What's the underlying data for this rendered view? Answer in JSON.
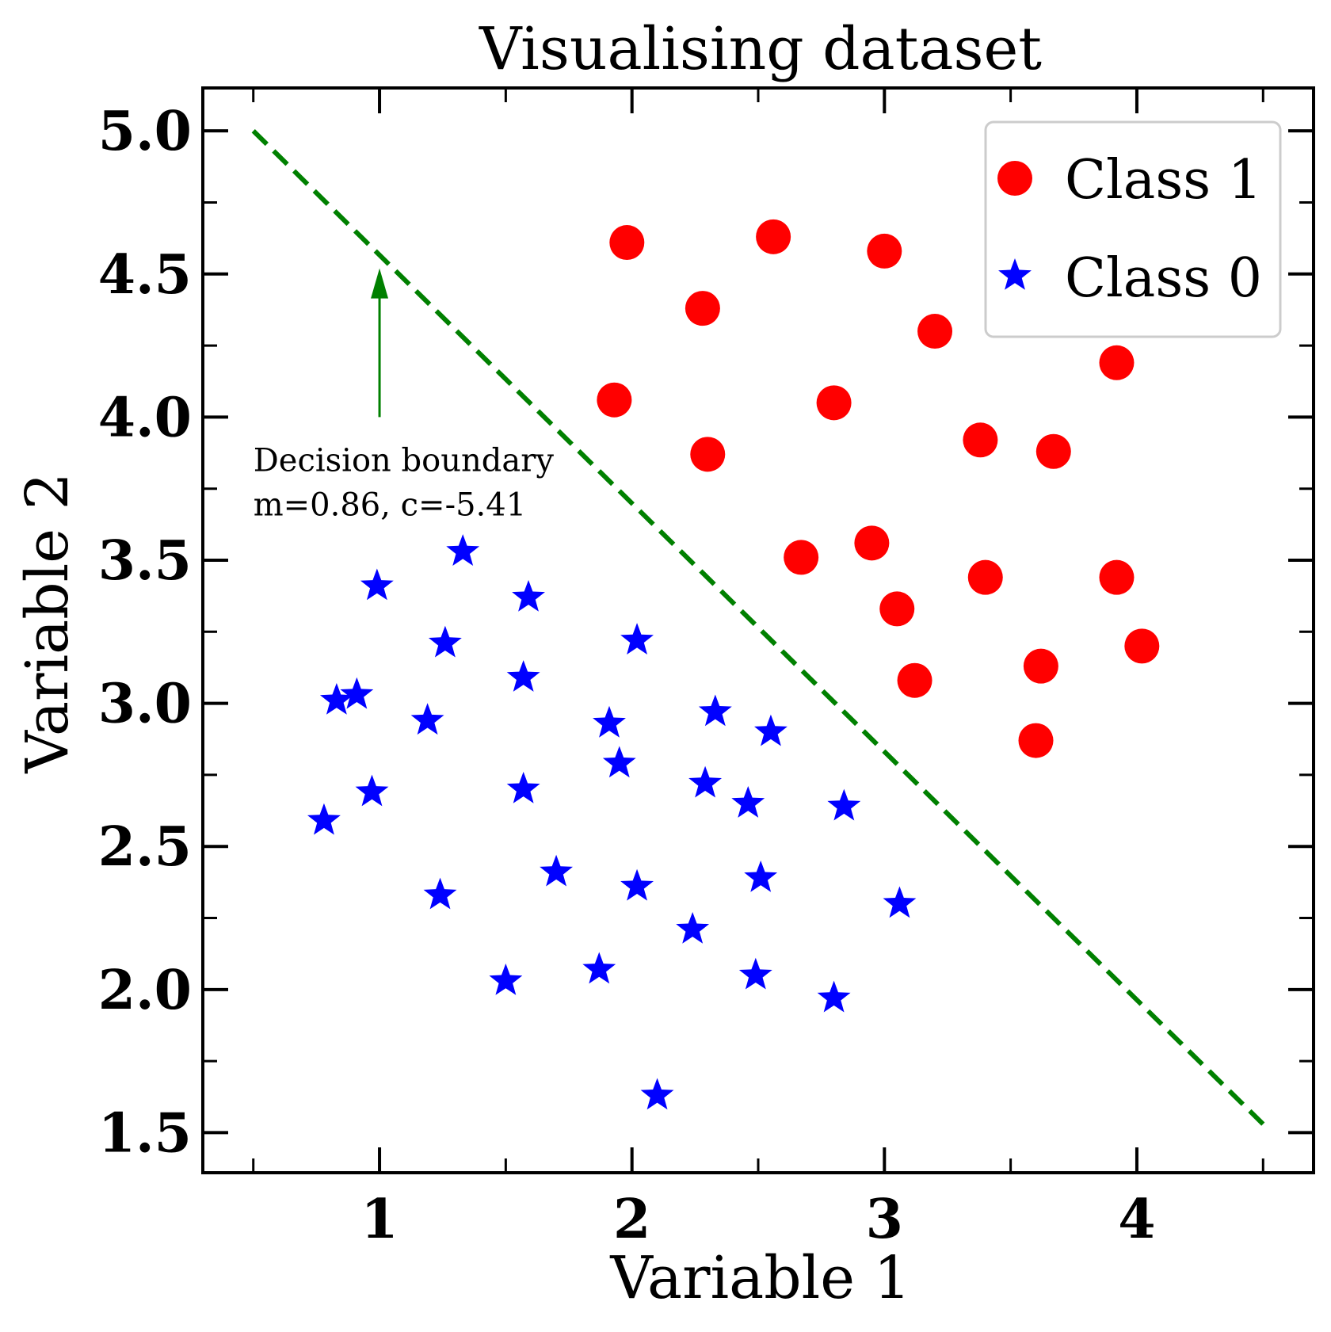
{
  "chart_data": {
    "type": "scatter",
    "title": "Visualising dataset",
    "xlabel": "Variable 1",
    "ylabel": "Variable 2",
    "xlim": [
      0.3,
      4.7
    ],
    "ylim": [
      1.36,
      5.15
    ],
    "x_ticks": [
      {
        "value": 1,
        "label": "1"
      },
      {
        "value": 2,
        "label": "2"
      },
      {
        "value": 3,
        "label": "3"
      },
      {
        "value": 4,
        "label": "4"
      }
    ],
    "x_minor_ticks": [
      0.5,
      1.5,
      2.5,
      3.5,
      4.5
    ],
    "y_ticks": [
      {
        "value": 1.5,
        "label": "1.5"
      },
      {
        "value": 2.0,
        "label": "2.0"
      },
      {
        "value": 2.5,
        "label": "2.5"
      },
      {
        "value": 3.0,
        "label": "3.0"
      },
      {
        "value": 3.5,
        "label": "3.5"
      },
      {
        "value": 4.0,
        "label": "4.0"
      },
      {
        "value": 4.5,
        "label": "4.5"
      },
      {
        "value": 5.0,
        "label": "5.0"
      }
    ],
    "y_minor_ticks": [
      1.75,
      2.25,
      2.75,
      3.25,
      3.75,
      4.25,
      4.75
    ],
    "grid": false,
    "legend_position": "top-right",
    "series": [
      {
        "name": "Class 1",
        "marker": "circle",
        "color": "#ff0000",
        "points": [
          [
            1.98,
            4.61
          ],
          [
            2.56,
            4.63
          ],
          [
            3.0,
            4.58
          ],
          [
            2.28,
            4.38
          ],
          [
            3.2,
            4.3
          ],
          [
            3.92,
            4.19
          ],
          [
            1.93,
            4.06
          ],
          [
            2.8,
            4.05
          ],
          [
            2.3,
            3.87
          ],
          [
            3.38,
            3.92
          ],
          [
            3.67,
            3.88
          ],
          [
            2.67,
            3.51
          ],
          [
            2.95,
            3.56
          ],
          [
            3.05,
            3.33
          ],
          [
            3.4,
            3.44
          ],
          [
            3.92,
            3.44
          ],
          [
            3.12,
            3.08
          ],
          [
            3.62,
            3.13
          ],
          [
            4.02,
            3.2
          ],
          [
            3.6,
            2.87
          ]
        ]
      },
      {
        "name": "Class 0",
        "marker": "star",
        "color": "#0000ff",
        "points": [
          [
            1.33,
            3.53
          ],
          [
            0.99,
            3.41
          ],
          [
            1.59,
            3.37
          ],
          [
            1.26,
            3.21
          ],
          [
            2.02,
            3.22
          ],
          [
            0.83,
            3.01
          ],
          [
            0.91,
            3.03
          ],
          [
            1.57,
            3.09
          ],
          [
            1.19,
            2.94
          ],
          [
            1.91,
            2.93
          ],
          [
            2.33,
            2.97
          ],
          [
            2.55,
            2.9
          ],
          [
            1.95,
            2.79
          ],
          [
            1.57,
            2.7
          ],
          [
            2.29,
            2.72
          ],
          [
            2.46,
            2.65
          ],
          [
            2.84,
            2.64
          ],
          [
            0.97,
            2.69
          ],
          [
            0.78,
            2.59
          ],
          [
            1.7,
            2.41
          ],
          [
            2.02,
            2.36
          ],
          [
            2.51,
            2.39
          ],
          [
            1.24,
            2.33
          ],
          [
            3.06,
            2.3
          ],
          [
            2.24,
            2.21
          ],
          [
            1.5,
            2.03
          ],
          [
            1.87,
            2.07
          ],
          [
            2.49,
            2.05
          ],
          [
            2.8,
            1.97
          ],
          [
            2.1,
            1.63
          ]
        ]
      }
    ],
    "boundary_line": {
      "style": "dashed",
      "color": "#008000",
      "points": [
        [
          0.5,
          5.0
        ],
        [
          4.5,
          1.53
        ]
      ]
    },
    "annotation": {
      "lines": [
        "Decision boundary",
        "m=0.86, c=-5.41"
      ],
      "text_anchor": [
        0.5,
        3.8
      ],
      "arrow_from": [
        1.0,
        4.0
      ],
      "arrow_to": [
        1.0,
        4.52
      ],
      "color": "#008000"
    }
  }
}
